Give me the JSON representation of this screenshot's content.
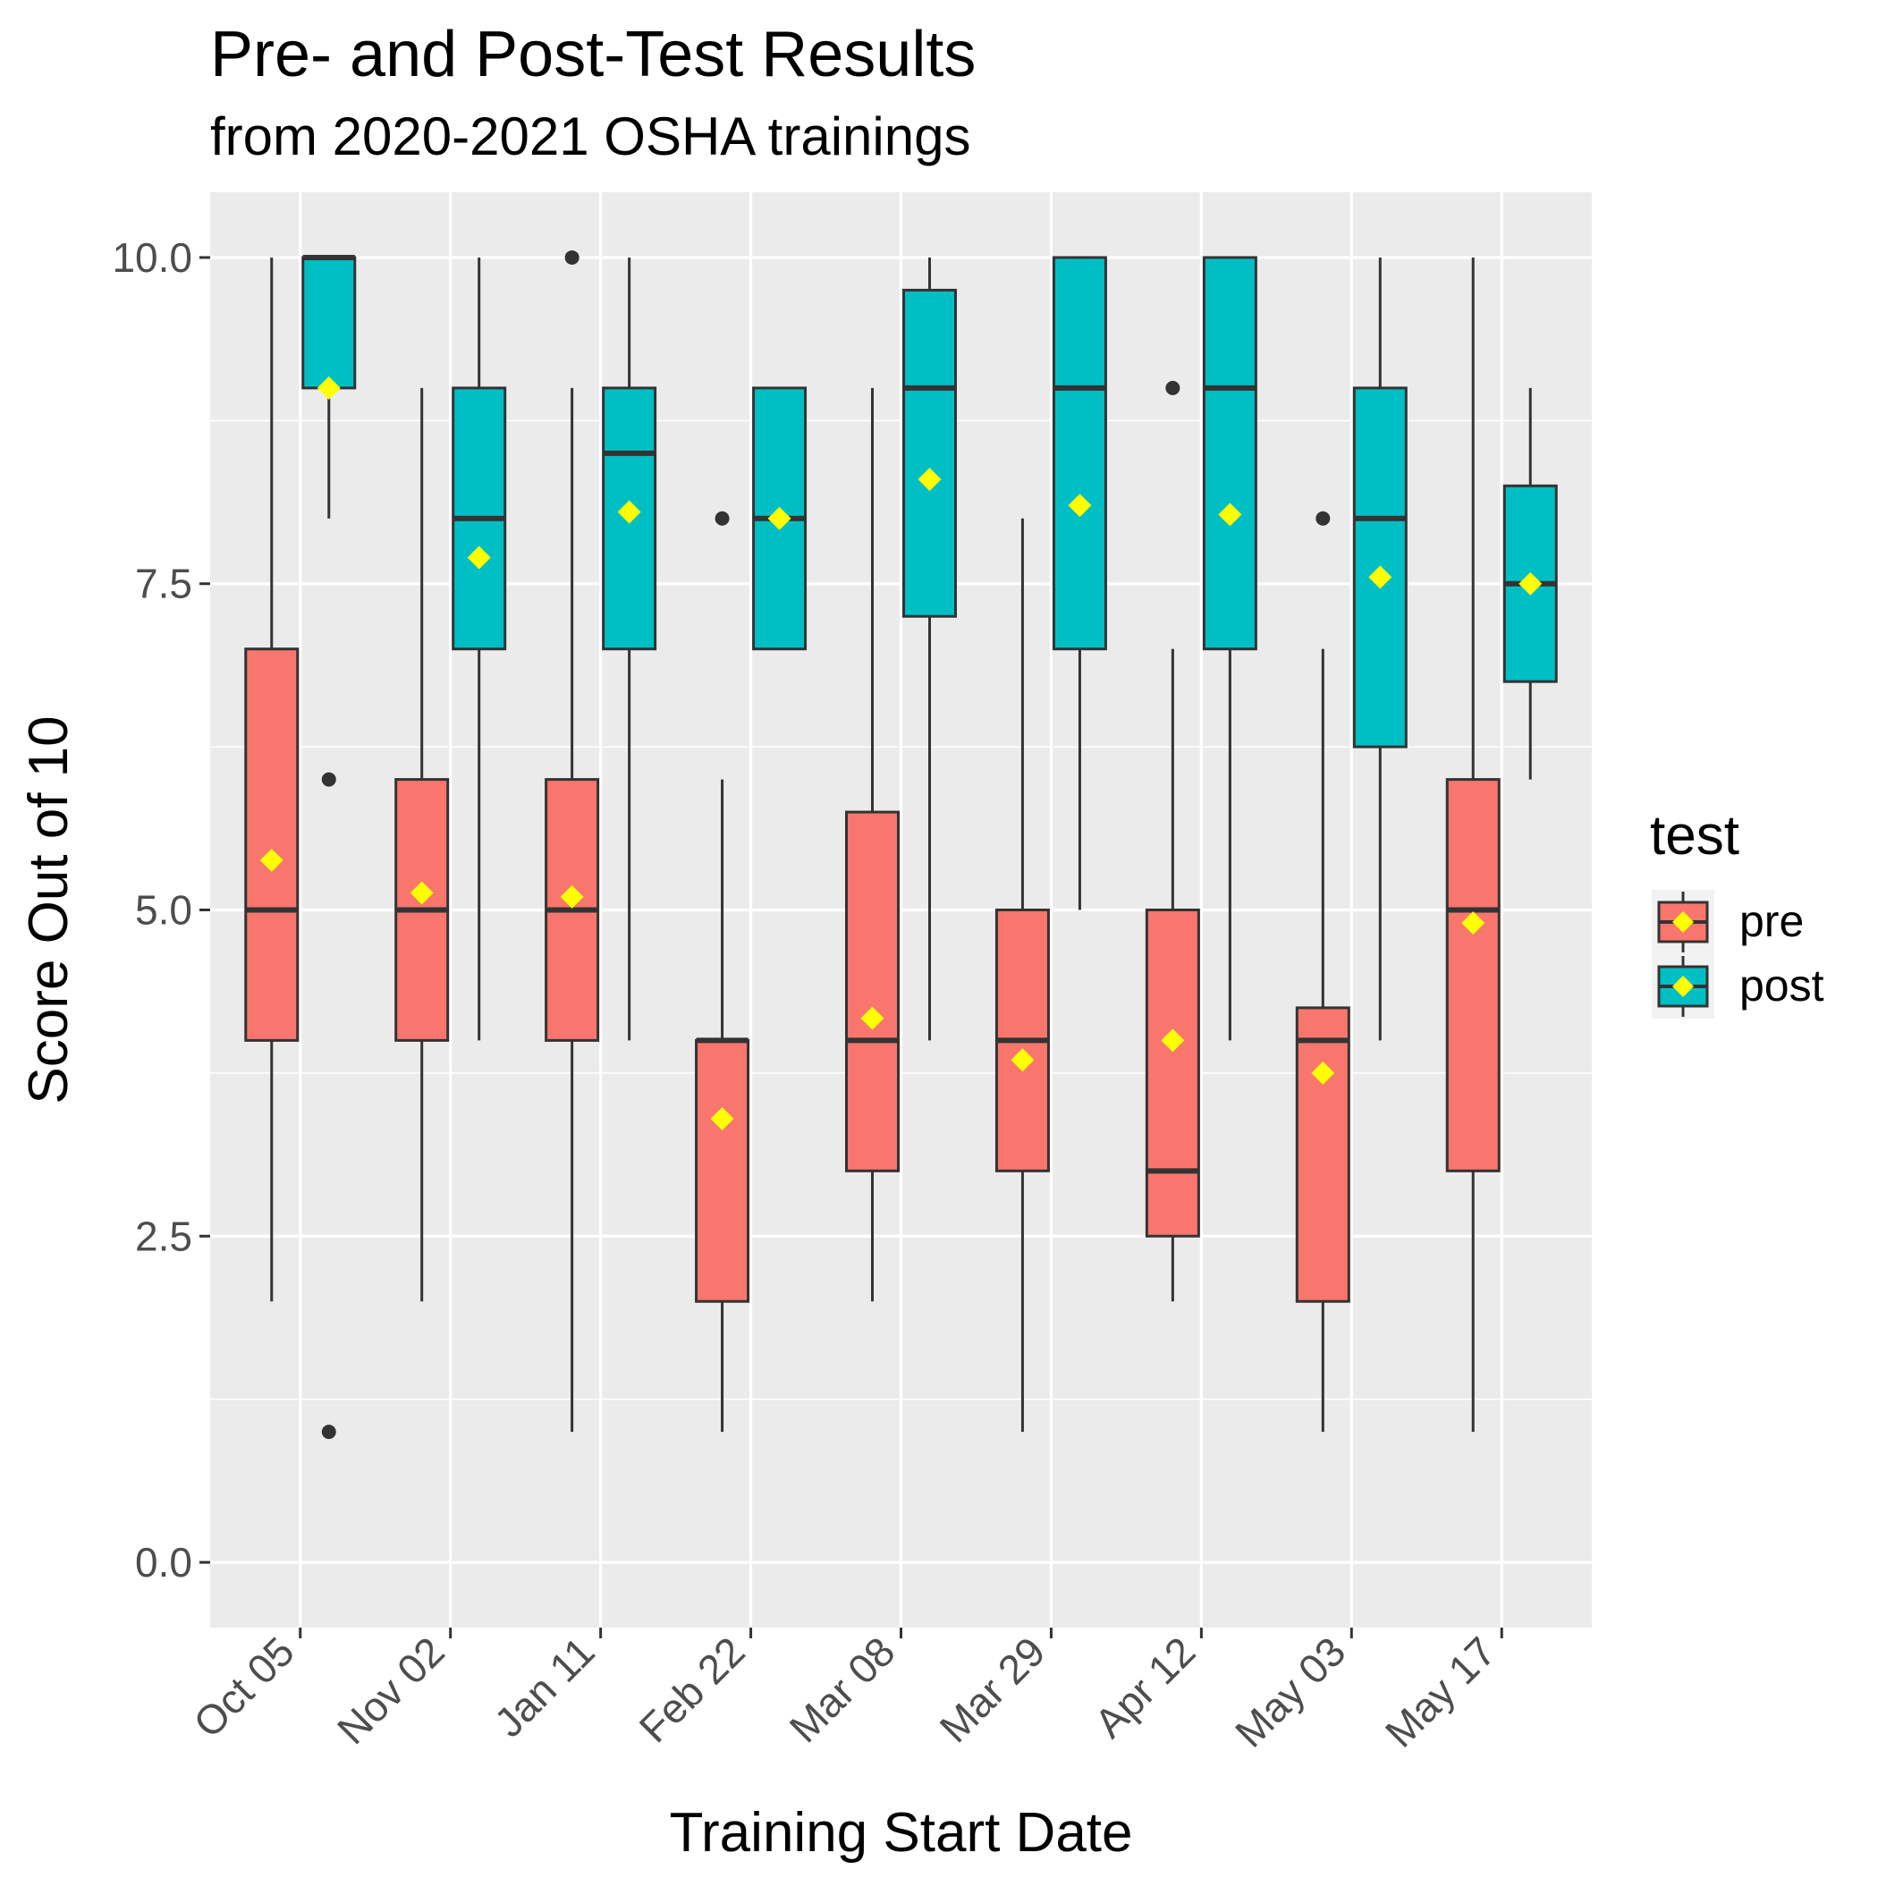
{
  "chart_data": {
    "type": "boxplot",
    "title": "Pre- and Post-Test Results",
    "subtitle": "from 2020-2021 OSHA trainings",
    "xlabel": "Training Start Date",
    "ylabel": "Score Out of 10",
    "categories": [
      "Oct 05",
      "Nov 02",
      "Jan 11",
      "Feb 22",
      "Mar 08",
      "Mar 29",
      "Apr 12",
      "May 03",
      "May 17"
    ],
    "ylim": [
      -0.5,
      10.5
    ],
    "yticks": [
      0.0,
      2.5,
      5.0,
      7.5,
      10.0
    ],
    "ytick_labels": [
      "0.0",
      "2.5",
      "5.0",
      "7.5",
      "10.0"
    ],
    "grid": true,
    "legend": {
      "title": "test",
      "position": "right",
      "entries": [
        "pre",
        "post"
      ]
    },
    "colors": {
      "pre": "#F8766D",
      "post": "#00BFC4",
      "mean_marker": "#FFFF00",
      "panel": "#EBEBEB",
      "gridline": "#FFFFFF",
      "box_outline": "#333333"
    },
    "series": [
      {
        "name": "pre",
        "boxes": [
          {
            "min": 2,
            "q1": 4,
            "median": 5,
            "q3": 7,
            "max": 10,
            "mean": 5.38,
            "outliers": []
          },
          {
            "min": 2,
            "q1": 4,
            "median": 5,
            "q3": 6,
            "max": 9,
            "mean": 5.13,
            "outliers": []
          },
          {
            "min": 1,
            "q1": 4,
            "median": 5,
            "q3": 6,
            "max": 9,
            "mean": 5.1,
            "outliers": [
              10
            ]
          },
          {
            "min": 1,
            "q1": 2,
            "median": 4,
            "q3": 4,
            "max": 6,
            "mean": 3.4,
            "outliers": [
              8
            ]
          },
          {
            "min": 2,
            "q1": 3,
            "median": 4,
            "q3": 5.75,
            "max": 9,
            "mean": 4.17,
            "outliers": []
          },
          {
            "min": 1,
            "q1": 3,
            "median": 4,
            "q3": 5,
            "max": 8,
            "mean": 3.85,
            "outliers": []
          },
          {
            "min": 2,
            "q1": 2.5,
            "median": 3,
            "q3": 5,
            "max": 7,
            "mean": 4.0,
            "outliers": [
              9
            ]
          },
          {
            "min": 1,
            "q1": 2,
            "median": 4,
            "q3": 4.25,
            "max": 7,
            "mean": 3.75,
            "outliers": [
              8
            ]
          },
          {
            "min": 1,
            "q1": 3,
            "median": 5,
            "q3": 6,
            "max": 10,
            "mean": 4.9,
            "outliers": []
          }
        ]
      },
      {
        "name": "post",
        "boxes": [
          {
            "min": 8,
            "q1": 9,
            "median": 10,
            "q3": 10,
            "max": 10,
            "mean": 9.0,
            "outliers": [
              6,
              1
            ]
          },
          {
            "min": 4,
            "q1": 7,
            "median": 8,
            "q3": 9,
            "max": 10,
            "mean": 7.7,
            "outliers": []
          },
          {
            "min": 4,
            "q1": 7,
            "median": 8.5,
            "q3": 9,
            "max": 10,
            "mean": 8.05,
            "outliers": []
          },
          {
            "min": 7,
            "q1": 7,
            "median": 8,
            "q3": 9,
            "max": 9,
            "mean": 8.0,
            "outliers": [
              8
            ]
          },
          {
            "min": 4,
            "q1": 7.25,
            "median": 9,
            "q3": 9.75,
            "max": 10,
            "mean": 8.3,
            "outliers": []
          },
          {
            "min": 5,
            "q1": 7,
            "median": 9,
            "q3": 10,
            "max": 10,
            "mean": 8.1,
            "outliers": []
          },
          {
            "min": 4,
            "q1": 7,
            "median": 9,
            "q3": 10,
            "max": 10,
            "mean": 8.03,
            "outliers": []
          },
          {
            "min": 4,
            "q1": 6.25,
            "median": 8,
            "q3": 9,
            "max": 10,
            "mean": 7.55,
            "outliers": []
          },
          {
            "min": 6,
            "q1": 6.75,
            "median": 7.5,
            "q3": 8.25,
            "max": 9,
            "mean": 7.5,
            "outliers": []
          }
        ]
      }
    ]
  }
}
